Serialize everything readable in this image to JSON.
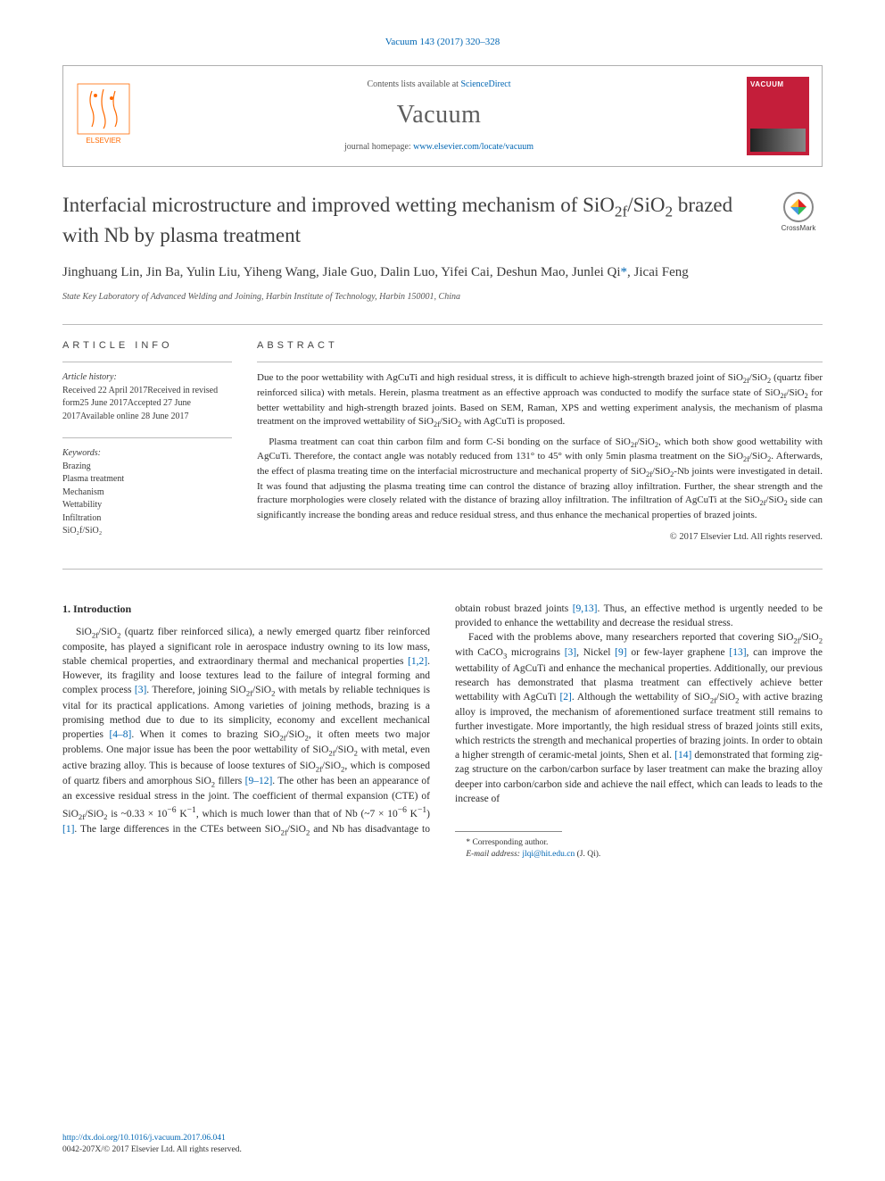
{
  "citation": "Vacuum 143 (2017) 320–328",
  "header": {
    "publisher_name": "ELSEVIER",
    "contents_text": "Contents lists available at ",
    "contents_link": "ScienceDirect",
    "journal_name": "Vacuum",
    "homepage_text": "journal homepage: ",
    "homepage_link": "www.elsevier.com/locate/vacuum",
    "cover_title": "VACUUM"
  },
  "article": {
    "title_html": "Interfacial microstructure and improved wetting mechanism of SiO<sub>2f</sub>/SiO<sub>2</sub> brazed with Nb by plasma treatment",
    "crossmark_label": "CrossMark",
    "authors_html": "Jinghuang Lin, Jin Ba, Yulin Liu, Yiheng Wang, Jiale Guo, Dalin Luo, Yifei Cai, Deshun Mao, Junlei Qi<span class=\"corr\">*</span>, Jicai Feng",
    "affiliation": "State Key Laboratory of Advanced Welding and Joining, Harbin Institute of Technology, Harbin 150001, China"
  },
  "meta": {
    "info_heading": "ARTICLE INFO",
    "history_label": "Article history:",
    "history_lines": [
      "Received 22 April 2017",
      "Received in revised form",
      "25 June 2017",
      "Accepted 27 June 2017",
      "Available online 28 June 2017"
    ],
    "keywords_label": "Keywords:",
    "keywords": [
      "Brazing",
      "Plasma treatment",
      "Mechanism",
      "Wettability",
      "Infiltration",
      "SiO₂f/SiO₂"
    ]
  },
  "abstract": {
    "heading": "ABSTRACT",
    "p1_html": "Due to the poor wettability with AgCuTi and high residual stress, it is difficult to achieve high-strength brazed joint of SiO<sub>2f</sub>/SiO<sub>2</sub> (quartz fiber reinforced silica) with metals. Herein, plasma treatment as an effective approach was conducted to modify the surface state of SiO<sub>2f</sub>/SiO<sub>2</sub> for better wettability and high-strength brazed joints. Based on SEM, Raman, XPS and wetting experiment analysis, the mechanism of plasma treatment on the improved wettability of SiO<sub>2f</sub>/SiO<sub>2</sub> with AgCuTi is proposed.",
    "p2_html": "Plasma treatment can coat thin carbon film and form C-Si bonding on the surface of SiO<sub>2f</sub>/SiO<sub>2</sub>, which both show good wettability with AgCuTi. Therefore, the contact angle was notably reduced from 131° to 45° with only 5min plasma treatment on the SiO<sub>2f</sub>/SiO<sub>2</sub>. Afterwards, the effect of plasma treating time on the interfacial microstructure and mechanical property of SiO<sub>2f</sub>/SiO<sub>2</sub>-Nb joints were investigated in detail. It was found that adjusting the plasma treating time can control the distance of brazing alloy infiltration. Further, the shear strength and the fracture morphologies were closely related with the distance of brazing alloy infiltration. The infiltration of AgCuTi at the SiO<sub>2f</sub>/SiO<sub>2</sub> side can significantly increase the bonding areas and reduce residual stress, and thus enhance the mechanical properties of brazed joints.",
    "copyright": "© 2017 Elsevier Ltd. All rights reserved."
  },
  "body": {
    "section_heading": "1. Introduction",
    "p1_html": "SiO<sub>2f</sub>/SiO<sub>2</sub> (quartz fiber reinforced silica), a newly emerged quartz fiber reinforced composite, has played a significant role in aerospace industry owning to its low mass, stable chemical properties, and extraordinary thermal and mechanical properties <a class=\"ref\" data-name=\"citation-link\" data-interactable=\"true\">[1,2]</a>. However, its fragility and loose textures lead to the failure of integral forming and complex process <a class=\"ref\" data-name=\"citation-link\" data-interactable=\"true\">[3]</a>. Therefore, joining SiO<sub>2f</sub>/SiO<sub>2</sub> with metals by reliable techniques is vital for its practical applications. Among varieties of joining methods, brazing is a promising method due to due to its simplicity, economy and excellent mechanical properties <a class=\"ref\" data-name=\"citation-link\" data-interactable=\"true\">[4–8]</a>. When it comes to brazing SiO<sub>2f</sub>/SiO<sub>2</sub>, it often meets two major problems. One major issue has been the poor wettability of SiO<sub>2f</sub>/SiO<sub>2</sub> with metal, even active brazing alloy. This is because of loose textures of SiO<sub>2f</sub>/SiO<sub>2</sub>, which is composed of quartz fibers and amorphous SiO<sub>2</sub> fillers <a class=\"ref\" data-name=\"citation-link\" data-interactable=\"true\">[9–12]</a>. The other has been an appearance of an excessive residual stress in the joint. The coefficient of thermal expansion (CTE) of SiO<sub>2f</sub>/SiO<sub>2</sub> is ~0.33 × 10<sup>−6</sup> K<sup>−1</sup>, which is much lower than that of Nb (~7 × 10<sup>−6</sup> K<sup>−1</sup>) <a class=\"ref\" data-name=\"citation-link\" data-interactable=\"true\">[1]</a>. The large differences in the CTEs between SiO<sub>2f</sub>/SiO<sub>2</sub> and Nb has disadvantage to obtain robust brazed joints <a class=\"ref\" data-name=\"citation-link\" data-interactable=\"true\">[9,13]</a>. Thus, an effective method is urgently needed to be provided to enhance the wettability and decrease the residual stress.",
    "p2_html": "Faced with the problems above, many researchers reported that covering SiO<sub>2f</sub>/SiO<sub>2</sub> with CaCO<sub>3</sub> micrograins <a class=\"ref\" data-name=\"citation-link\" data-interactable=\"true\">[3]</a>, Nickel <a class=\"ref\" data-name=\"citation-link\" data-interactable=\"true\">[9]</a> or few-layer graphene <a class=\"ref\" data-name=\"citation-link\" data-interactable=\"true\">[13]</a>, can improve the wettability of AgCuTi and enhance the mechanical properties. Additionally, our previous research has demonstrated that plasma treatment can effectively achieve better wettability with AgCuTi <a class=\"ref\" data-name=\"citation-link\" data-interactable=\"true\">[2]</a>. Although the wettability of SiO<sub>2f</sub>/SiO<sub>2</sub> with active brazing alloy is improved, the mechanism of aforementioned surface treatment still remains to further investigate. More importantly, the high residual stress of brazed joints still exits, which restricts the strength and mechanical properties of brazing joints. In order to obtain a higher strength of ceramic-metal joints, Shen et al. <a class=\"ref\" data-name=\"citation-link\" data-interactable=\"true\">[14]</a> demonstrated that forming zig-zag structure on the carbon/carbon surface by laser treatment can make the brazing alloy deeper into carbon/carbon side and achieve the nail effect, which can leads to leads to the increase of"
  },
  "footnote": {
    "corr_label": "* Corresponding author.",
    "email_label": "E-mail address: ",
    "email": "jlqi@hit.edu.cn",
    "email_suffix": " (J. Qi)."
  },
  "footer": {
    "doi": "http://dx.doi.org/10.1016/j.vacuum.2017.06.041",
    "issn_line": "0042-207X/© 2017 Elsevier Ltd. All rights reserved."
  },
  "colors": {
    "link": "#0066b3",
    "text": "#2b2b2b",
    "muted": "#555555",
    "border": "#b0b0b0",
    "elsevier_orange": "#ff6a00",
    "cover_red": "#c41e3a"
  }
}
